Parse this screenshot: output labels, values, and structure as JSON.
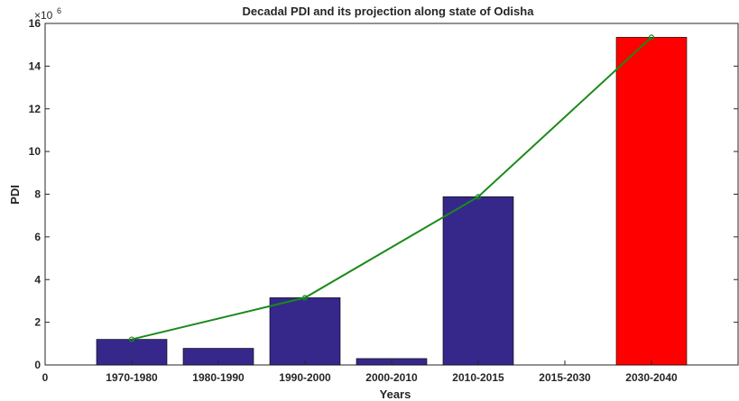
{
  "chart_data": {
    "type": "bar",
    "title": "Decadal PDI and its projection along state of Odisha",
    "xlabel": "Years",
    "ylabel": "PDI",
    "y_exponent_label": "×10",
    "y_exponent_power": "6",
    "ylim": [
      0,
      16000000
    ],
    "y_ticks": [
      0,
      2000000,
      4000000,
      6000000,
      8000000,
      10000000,
      12000000,
      14000000,
      16000000
    ],
    "y_tick_labels": [
      "0",
      "2",
      "4",
      "6",
      "8",
      "10",
      "12",
      "14",
      "16"
    ],
    "x_zero_label": "0",
    "categories": [
      "1970-1980",
      "1980-1990",
      "1990-2000",
      "2000-2010",
      "2010-2015",
      "2015-2030",
      "2030-2040"
    ],
    "values": [
      1200000,
      780000,
      3150000,
      300000,
      7880000,
      0,
      15350000
    ],
    "bar_colors": [
      "#35288a",
      "#35288a",
      "#35288a",
      "#35288a",
      "#35288a",
      "#35288a",
      "#ff0000"
    ],
    "line_series": {
      "color": "#1a8a1a",
      "points": [
        {
          "category": "1970-1980",
          "value": 1200000
        },
        {
          "category": "1990-2000",
          "value": 3150000
        },
        {
          "category": "2010-2015",
          "value": 7880000
        },
        {
          "category": "2030-2040",
          "value": 15350000
        }
      ]
    },
    "grid": false,
    "legend": "none"
  }
}
